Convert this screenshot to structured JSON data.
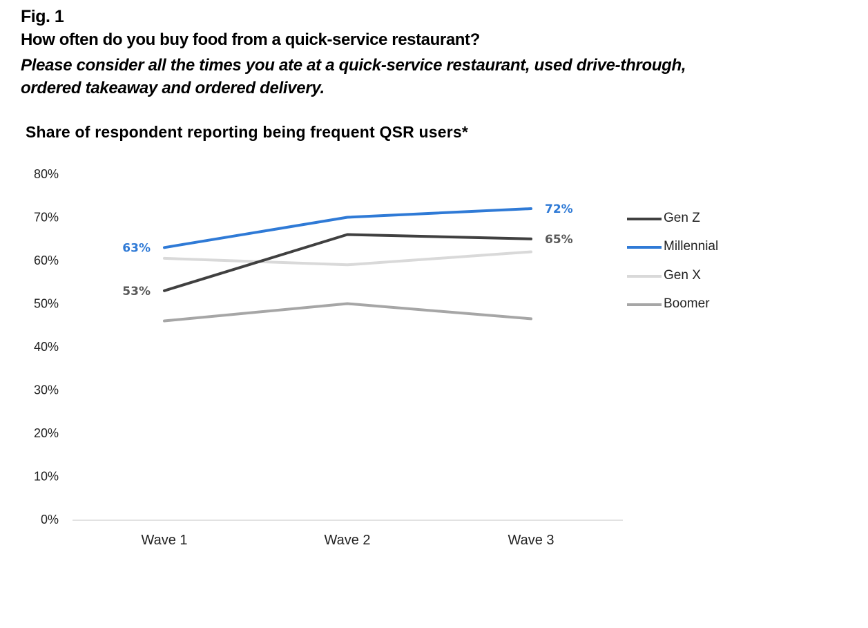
{
  "header": {
    "fig_label": "Fig. 1",
    "question": "How often do you buy food from a quick-service restaurant?",
    "instruction": " Please consider all the times you ate at a quick-service restaurant, used drive-through,\nordered takeaway and ordered delivery."
  },
  "chart_data": {
    "type": "line",
    "title": "Share of respondent reporting being frequent QSR users*",
    "xlabel": "",
    "ylabel": "",
    "categories": [
      "Wave 1",
      "Wave 2",
      "Wave 3"
    ],
    "ylim": [
      0,
      80
    ],
    "y_ticks": [
      0,
      10,
      20,
      30,
      40,
      50,
      60,
      70,
      80
    ],
    "y_tick_format": "percent",
    "grid": false,
    "legend_position": "right",
    "series": [
      {
        "name": "Gen Z",
        "color": "#404040",
        "values": [
          53,
          66,
          65
        ],
        "data_labels": [
          {
            "index": 0,
            "text": "53%",
            "side": "left"
          },
          {
            "index": 2,
            "text": "65%",
            "side": "right"
          }
        ]
      },
      {
        "name": "Millennial",
        "color": "#2f7ad6",
        "values": [
          63,
          70,
          72
        ],
        "data_labels": [
          {
            "index": 0,
            "text": "63%",
            "side": "left"
          },
          {
            "index": 2,
            "text": "72%",
            "side": "right"
          }
        ]
      },
      {
        "name": "Gen X",
        "color": "#d9d9d9",
        "values": [
          60.5,
          59,
          62
        ],
        "data_labels": []
      },
      {
        "name": "Boomer",
        "color": "#a6a6a6",
        "values": [
          46,
          50,
          46.5
        ],
        "data_labels": []
      }
    ],
    "data_label_colors": {
      "Gen Z": "#595959",
      "Millennial": "#2f7ad6"
    }
  }
}
